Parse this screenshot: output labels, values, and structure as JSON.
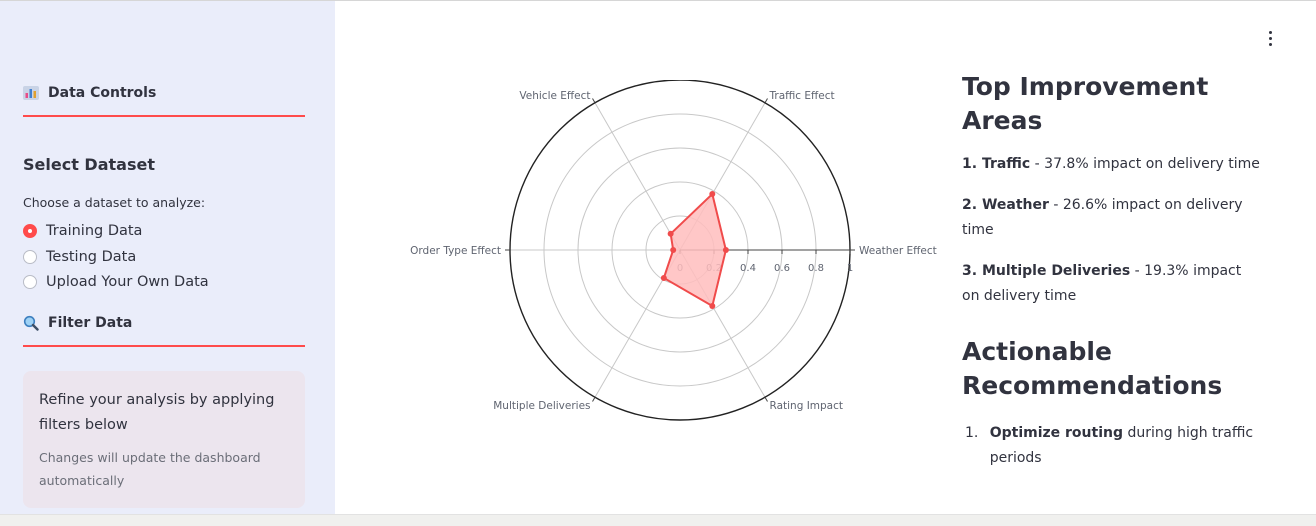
{
  "sidebar": {
    "data_controls": {
      "icon": "bar-chart-icon",
      "title": "Data Controls"
    },
    "select_dataset": {
      "title": "Select Dataset",
      "caption": "Choose a dataset to analyze:",
      "options": [
        "Training Data",
        "Testing Data",
        "Upload Your Own Data"
      ],
      "selected": "Training Data"
    },
    "filter": {
      "icon": "magnifier-icon",
      "title": "Filter Data"
    },
    "info": {
      "text": "Refine your analysis by applying filters below",
      "subtext": "Changes will update the dashboard automatically"
    }
  },
  "main": {
    "menu_icon": "kebab-menu-icon",
    "top_areas": {
      "title": "Top Improvement Areas",
      "items": [
        {
          "rank": "1.",
          "name": "Traffic",
          "rest": " - 37.8% impact on delivery time"
        },
        {
          "rank": "2.",
          "name": "Weather",
          "rest": " - 26.6% impact on delivery time"
        },
        {
          "rank": "3.",
          "name": "Multiple Deliveries",
          "rest": " - 19.3% impact on delivery time"
        }
      ]
    },
    "recommendations": {
      "title": "Actionable Recommendations",
      "items": [
        {
          "num": "1.",
          "bold": "Optimize routing",
          "rest": " during high traffic periods"
        }
      ]
    }
  },
  "chart_data": {
    "type": "radar",
    "categories": [
      "Weather Effect",
      "Traffic Effect",
      "Vehicle Effect",
      "Order Type Effect",
      "Multiple Deliveries",
      "Rating Impact"
    ],
    "values": [
      0.27,
      0.38,
      0.11,
      0.04,
      0.19,
      0.38
    ],
    "radial_range": [
      0,
      1
    ],
    "radial_ticks": [
      "0",
      "0.2",
      "0.4",
      "0.6",
      "0.8",
      "1"
    ],
    "colors": {
      "fill": "#ffbdbd",
      "line": "#f04b4b"
    }
  }
}
